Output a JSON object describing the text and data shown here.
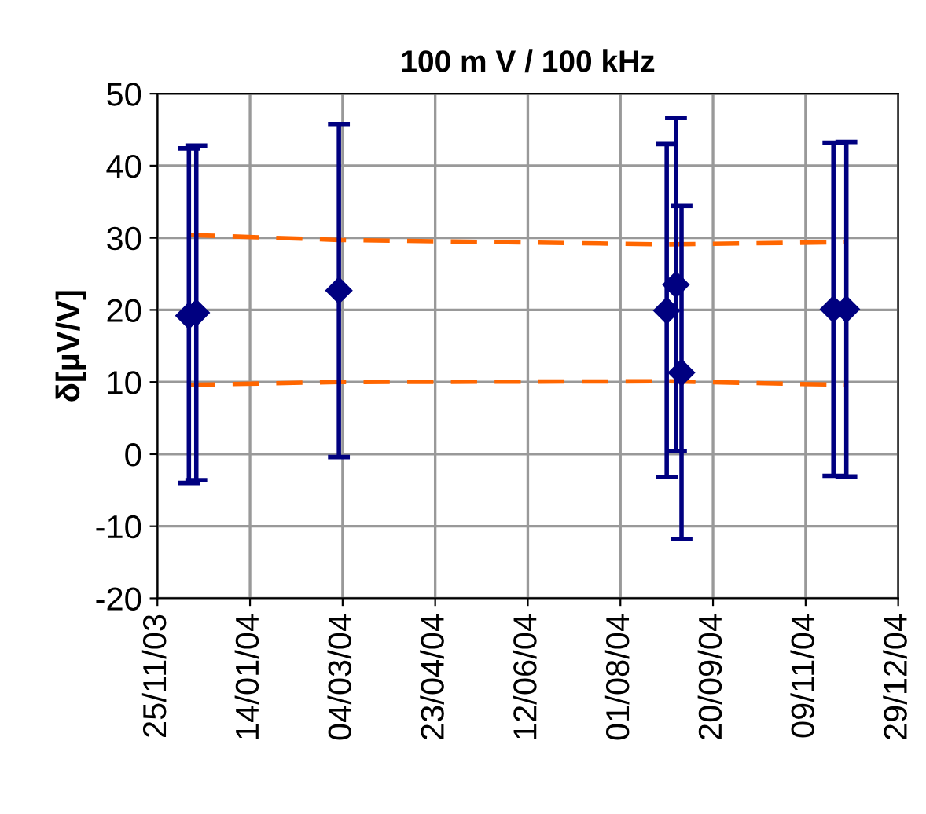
{
  "chart_data": {
    "type": "scatter",
    "title": "100 m V / 100 kHz",
    "ylabel": "δ[µV/V]",
    "xlim": [
      "2003-11-25",
      "2004-12-29"
    ],
    "xticks": [
      {
        "value": "2003-11-25",
        "label": "25/11/03"
      },
      {
        "value": "2004-01-14",
        "label": "14/01/04"
      },
      {
        "value": "2004-03-04",
        "label": "04/03/04"
      },
      {
        "value": "2004-04-23",
        "label": "23/04/04"
      },
      {
        "value": "2004-06-12",
        "label": "12/06/04"
      },
      {
        "value": "2004-08-01",
        "label": "01/08/04"
      },
      {
        "value": "2004-09-20",
        "label": "20/09/04"
      },
      {
        "value": "2004-11-09",
        "label": "09/11/04"
      },
      {
        "value": "2004-12-29",
        "label": "29/12/04"
      }
    ],
    "ylim": [
      -20,
      50
    ],
    "yticks": [
      -20,
      -10,
      0,
      10,
      20,
      30,
      40,
      50
    ],
    "grid": true,
    "legend": false,
    "series": [
      {
        "color": "#000080",
        "marker": "diamond",
        "x": [
          "2003-12-12",
          "2003-12-16",
          "2004-03-02",
          "2004-08-26",
          "2004-08-31",
          "2004-09-03",
          "2004-11-24",
          "2004-12-01"
        ],
        "values": [
          19.2,
          19.6,
          22.7,
          19.9,
          23.5,
          11.3,
          20.1,
          20.1
        ],
        "errors": [
          23.2,
          23.2,
          23.1,
          23.1,
          23.1,
          23.1,
          23.1,
          23.2
        ]
      },
      {
        "type": "line",
        "color": "#ff6600",
        "line_style": "dashed",
        "marker": "none",
        "x": [
          "2003-12-12",
          "2004-03-02",
          "2004-08-26",
          "2004-12-01"
        ],
        "values": [
          30.4,
          29.7,
          29.1,
          29.4
        ]
      },
      {
        "type": "line",
        "color": "#ff6600",
        "line_style": "dashed",
        "marker": "none",
        "x": [
          "2003-12-12",
          "2004-03-02",
          "2004-08-26",
          "2004-12-01"
        ],
        "values": [
          9.6,
          10.0,
          10.1,
          9.6
        ]
      }
    ]
  }
}
